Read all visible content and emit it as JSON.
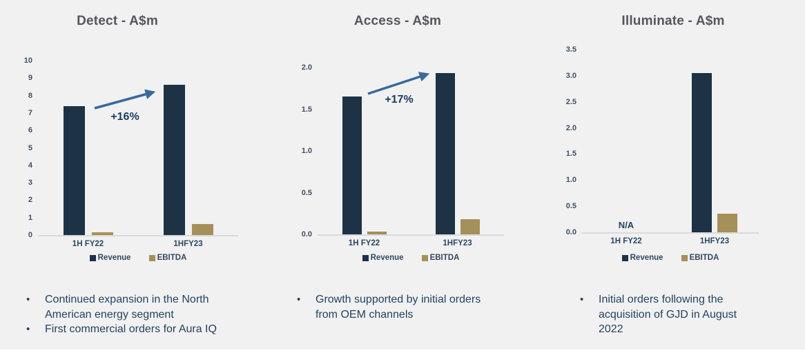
{
  "colors": {
    "background": "#f1f1f2",
    "revenue_bar": "#1d3245",
    "ebitda_bar": "#a5905a",
    "arrow": "#39699d",
    "title_text": "#55555d",
    "body_text": "#24425f",
    "axis_text": "#3f4e5f",
    "baseline": "#dadada"
  },
  "chart_data": [
    {
      "type": "bar",
      "title": "Detect - A$m",
      "categories": [
        "1H FY22",
        "1HFY23"
      ],
      "series": [
        {
          "name": "Revenue",
          "values": [
            7.4,
            8.6
          ],
          "color": "#1d3245"
        },
        {
          "name": "EBITDA",
          "values": [
            0.15,
            0.65
          ],
          "color": "#a5905a"
        }
      ],
      "annotation": "+16%",
      "ylim": [
        0,
        10
      ],
      "y_tick_labels": [
        "10",
        "9",
        "8",
        "7",
        "6",
        "5",
        "4",
        "3",
        "2",
        "1",
        "0"
      ],
      "grid": false,
      "legend_position": "bottom"
    },
    {
      "type": "bar",
      "title": "Access - A$m",
      "categories": [
        "1H FY22",
        "1HFY23"
      ],
      "series": [
        {
          "name": "Revenue",
          "values": [
            1.65,
            1.93
          ],
          "color": "#1d3245"
        },
        {
          "name": "EBITDA",
          "values": [
            0.03,
            0.18
          ],
          "color": "#a5905a"
        }
      ],
      "annotation": "+17%",
      "ylim": [
        0,
        2
      ],
      "y_tick_labels": [
        "2.0",
        "1.5",
        "1.0",
        "0.5",
        "0.0"
      ],
      "grid": false,
      "legend_position": "bottom"
    },
    {
      "type": "bar",
      "title": "Illuminate - A$m",
      "categories": [
        "1H FY22",
        "1HFY23"
      ],
      "series": [
        {
          "name": "Revenue",
          "values": [
            null,
            3.05
          ],
          "color": "#1d3245"
        },
        {
          "name": "EBITDA",
          "values": [
            null,
            0.36
          ],
          "color": "#a5905a"
        }
      ],
      "na_label": "N/A",
      "ylim": [
        0,
        3.5
      ],
      "y_tick_labels": [
        "3.5",
        "3.0",
        "2.5",
        "2.0",
        "1.5",
        "1.0",
        "0.5",
        "0.0"
      ],
      "grid": false,
      "legend_position": "bottom"
    }
  ],
  "panels": [
    {
      "bullets": [
        "Continued expansion in the North American energy segment",
        "First commercial orders for Aura IQ"
      ]
    },
    {
      "bullets": [
        "Growth supported by initial orders from OEM channels"
      ]
    },
    {
      "bullets": [
        "Initial orders following the acquisition of GJD in August 2022"
      ]
    }
  ]
}
